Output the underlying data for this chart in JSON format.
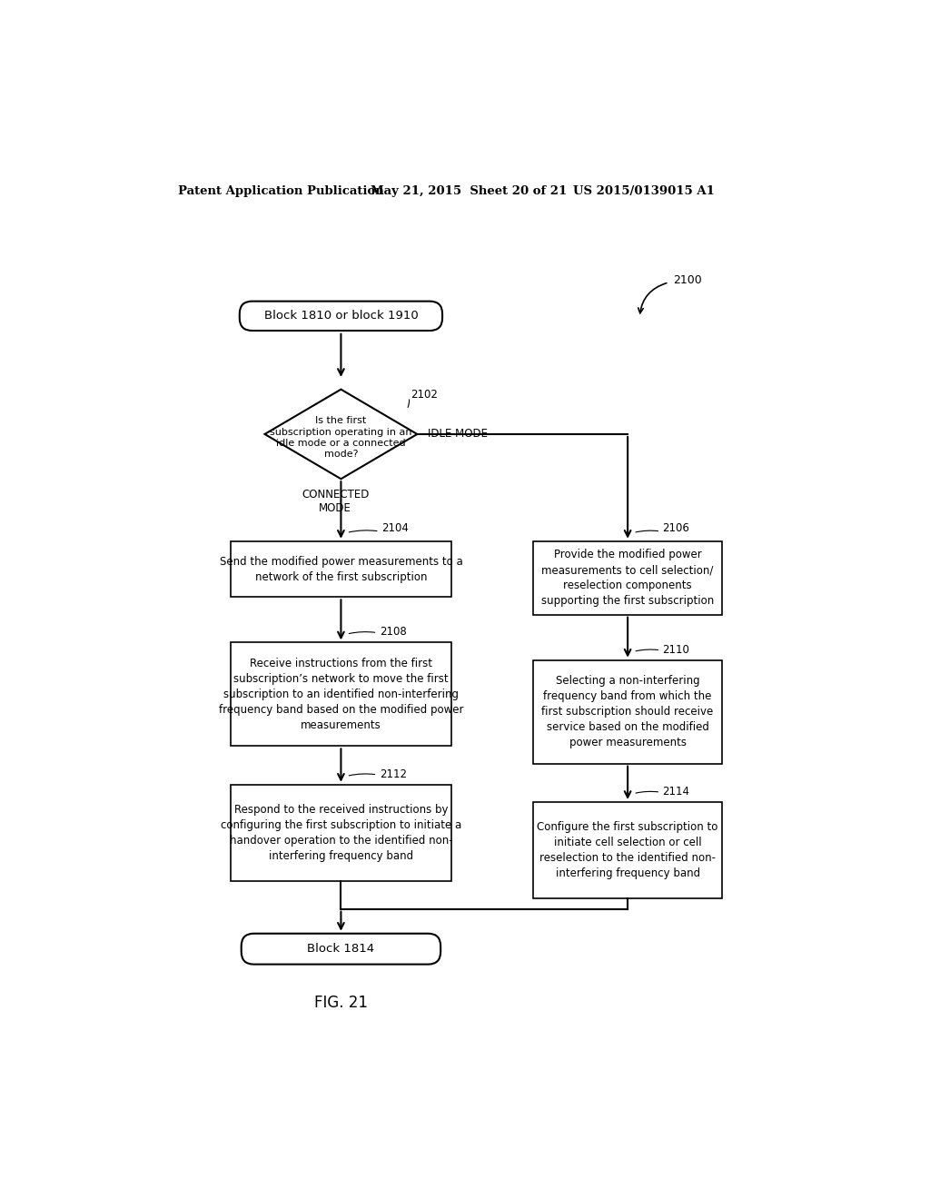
{
  "title_left": "Patent Application Publication",
  "title_mid": "May 21, 2015  Sheet 20 of 21",
  "title_right": "US 2015/0139015 A1",
  "fig_label": "FIG. 21",
  "diagram_label": "2100",
  "header_text": "Block 1810 or block 1910",
  "diamond_text": "Is the first\nsubscription operating in an\nidle mode or a connected\nmode?",
  "diamond_label": "2102",
  "connected_label": "CONNECTED\nMODE",
  "block_2104_label": "2104",
  "idle_label": "IDLE MODE",
  "block_2106_label": "2106",
  "block_2104_text": "Send the modified power measurements to a\nnetwork of the first subscription",
  "block_2106_text": "Provide the modified power\nmeasurements to cell selection/\nreselection components\nsupporting the first subscription",
  "block_2108_label": "2108",
  "block_2108_text": "Receive instructions from the first\nsubscription’s network to move the first\nsubscription to an identified non-interfering\nfrequency band based on the modified power\nmeasurements",
  "block_2110_label": "2110",
  "block_2110_text": "Selecting a non-interfering\nfrequency band from which the\nfirst subscription should receive\nservice based on the modified\npower measurements",
  "block_2112_label": "2112",
  "block_2112_text": "Respond to the received instructions by\nconfiguring the first subscription to initiate a\nhandover operation to the identified non-\ninterfering frequency band",
  "block_2114_label": "2114",
  "block_2114_text": "Configure the first subscription to\ninitiate cell selection or cell\nreselection to the identified non-\ninterfering frequency band",
  "footer_text": "Block 1814",
  "bg_color": "#ffffff",
  "text_color": "#000000"
}
